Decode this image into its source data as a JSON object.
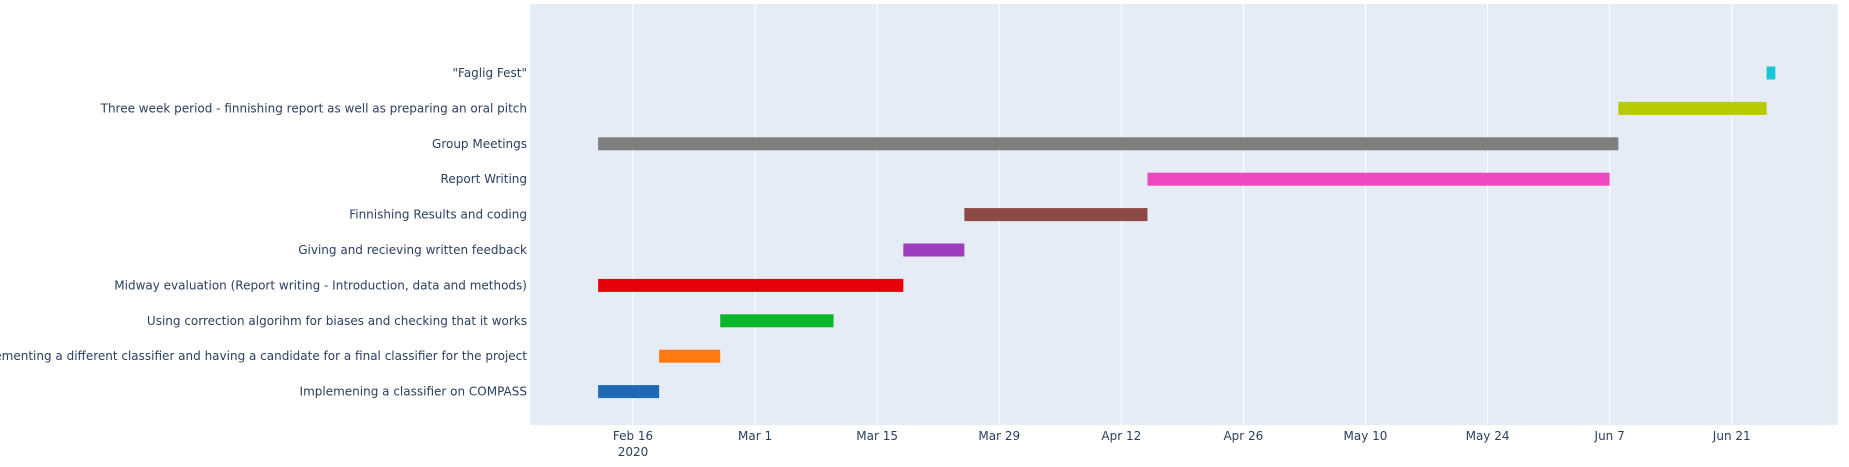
{
  "chart_data": {
    "type": "gantt",
    "title": "",
    "xlabel": "",
    "ylabel": "",
    "grid": true,
    "background_color": "#e5ecf6",
    "x_axis": {
      "type": "date",
      "range": [
        "2020-02-01",
        "2020-07-01"
      ],
      "ticks": [
        {
          "date": "2020-02-16",
          "label": "Feb 16",
          "sublabel": "2020"
        },
        {
          "date": "2020-03-01",
          "label": "Mar 1"
        },
        {
          "date": "2020-03-15",
          "label": "Mar 15"
        },
        {
          "date": "2020-03-29",
          "label": "Mar 29"
        },
        {
          "date": "2020-04-12",
          "label": "Apr 12"
        },
        {
          "date": "2020-04-26",
          "label": "Apr 26"
        },
        {
          "date": "2020-05-10",
          "label": "May 10"
        },
        {
          "date": "2020-05-24",
          "label": "May 24"
        },
        {
          "date": "2020-06-07",
          "label": "Jun 7"
        },
        {
          "date": "2020-06-21",
          "label": "Jun 21"
        }
      ]
    },
    "tasks": [
      {
        "name": "Implemening a classifier on COMPASS",
        "start": "2020-02-12",
        "end": "2020-02-19",
        "color": "#1f69b4"
      },
      {
        "name": "Implementing a different classifier and having a candidate for a final classifier for the project",
        "start": "2020-02-19",
        "end": "2020-02-26",
        "color": "#ff7a10"
      },
      {
        "name": "Using correction algorihm for biases and checking that it works",
        "start": "2020-02-26",
        "end": "2020-03-10",
        "color": "#0ab62b"
      },
      {
        "name": "Midway evaluation (Report writing - Introduction, data and methods)",
        "start": "2020-02-12",
        "end": "2020-03-18",
        "color": "#e8000b"
      },
      {
        "name": "Giving and recieving written feedback",
        "start": "2020-03-18",
        "end": "2020-03-25",
        "color": "#9f3cbd"
      },
      {
        "name": "Finnishing Results and coding",
        "start": "2020-03-25",
        "end": "2020-04-15",
        "color": "#8c4a47"
      },
      {
        "name": "Report Writing",
        "start": "2020-04-15",
        "end": "2020-06-07",
        "color": "#ef48bf"
      },
      {
        "name": "Group Meetings",
        "start": "2020-02-12",
        "end": "2020-06-08",
        "color": "#7f7f7f"
      },
      {
        "name": "Three week period - finnishing report as well as preparing an oral pitch",
        "start": "2020-06-08",
        "end": "2020-06-25",
        "color": "#b5ca00"
      },
      {
        "name": "\"Faglig Fest\"",
        "start": "2020-06-25",
        "end": "2020-06-26",
        "color": "#17c6d6"
      }
    ]
  }
}
